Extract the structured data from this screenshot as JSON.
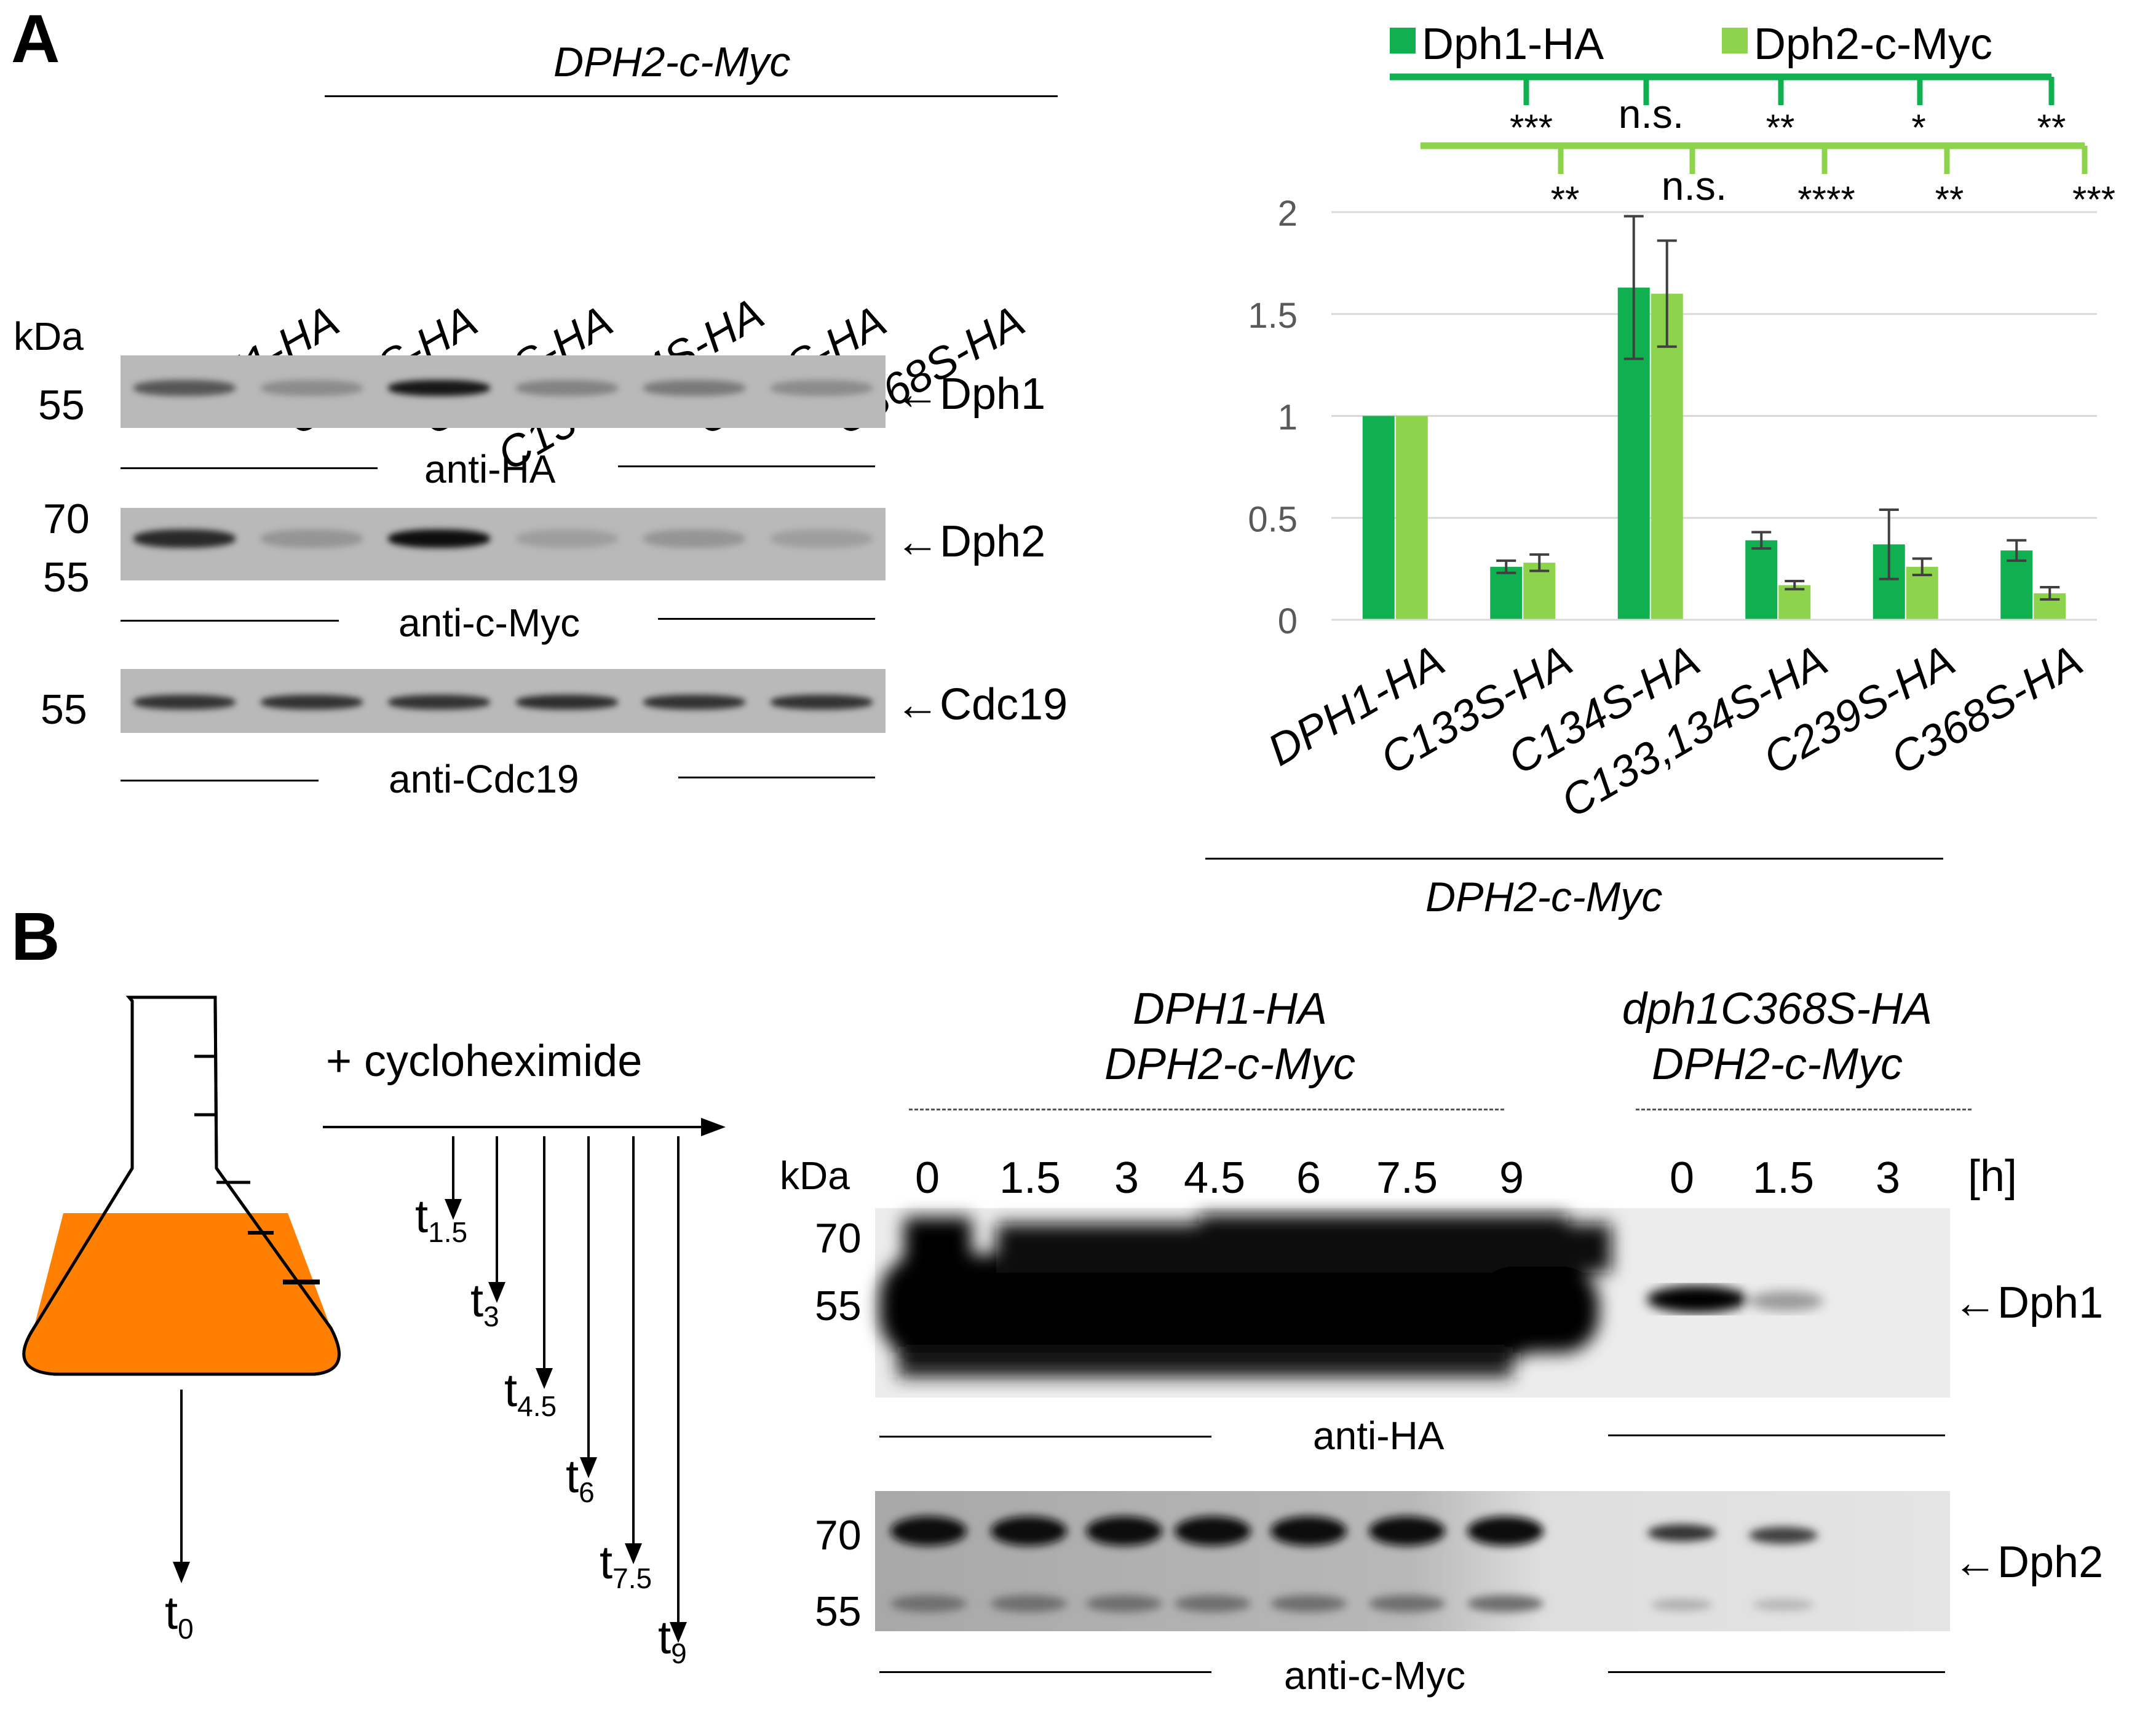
{
  "panelA": {
    "label": "A",
    "header": "DPH2-c-Myc",
    "lanes": [
      "DPH1-HA",
      "C133S-HA",
      "C134S-HA",
      "C133,134S-HA",
      "C239S-HA",
      "C368S-HA"
    ],
    "kda": "kDa",
    "blot1": {
      "mw": [
        "55"
      ],
      "protein": "Dph1",
      "antibody": "anti-HA",
      "intensity": [
        0.55,
        0.25,
        0.9,
        0.3,
        0.35,
        0.25
      ]
    },
    "blot2": {
      "mw": [
        "70",
        "55"
      ],
      "protein": "Dph2",
      "antibody": "anti-c-Myc",
      "intensity": [
        0.8,
        0.2,
        0.95,
        0.15,
        0.2,
        0.15
      ]
    },
    "blot3": {
      "mw": [
        "55"
      ],
      "protein": "Cdc19",
      "antibody": "anti-Cdc19",
      "intensity": [
        0.75,
        0.75,
        0.75,
        0.78,
        0.75,
        0.75
      ]
    },
    "arrow": "←"
  },
  "chart_data": {
    "type": "bar",
    "categories": [
      "DPH1-HA",
      "C133S-HA",
      "C134S-HA",
      "C133,134S-HA",
      "C239S-HA",
      "C368S-HA"
    ],
    "series": [
      {
        "name": "Dph1-HA",
        "color": "#10b050",
        "values": [
          1.0,
          0.26,
          1.63,
          0.39,
          0.37,
          0.34
        ],
        "errors": [
          0,
          0.03,
          0.35,
          0.04,
          0.17,
          0.05
        ]
      },
      {
        "name": "Dph2-c-Myc",
        "color": "#8ed34c",
        "values": [
          1.0,
          0.28,
          1.6,
          0.17,
          0.26,
          0.13
        ],
        "errors": [
          0,
          0.04,
          0.26,
          0.02,
          0.04,
          0.03
        ]
      }
    ],
    "ylim": [
      0,
      2
    ],
    "yticks": [
      "0",
      "0.5",
      "1",
      "1.5",
      "2"
    ],
    "xlabel": "DPH2-c-Myc",
    "significance": {
      "Dph1-HA": [
        "***",
        "n.s.",
        "**",
        "*",
        "**"
      ],
      "Dph2-c-Myc": [
        "**",
        "n.s.",
        "****",
        "**",
        "***"
      ]
    }
  },
  "panelB": {
    "label": "B",
    "treatment": "+ cycloheximide",
    "flask_t0": {
      "base": "t",
      "sub": "0"
    },
    "timepoints": [
      {
        "base": "t",
        "sub": "1.5"
      },
      {
        "base": "t",
        "sub": "3"
      },
      {
        "base": "t",
        "sub": "4.5"
      },
      {
        "base": "t",
        "sub": "6"
      },
      {
        "base": "t",
        "sub": "7.5"
      },
      {
        "base": "t",
        "sub": "9"
      }
    ],
    "strain1": [
      "DPH1-HA",
      "DPH2-c-Myc"
    ],
    "strain2": [
      "dph1C368S-HA",
      "DPH2-c-Myc"
    ],
    "kda": "kDa",
    "times1": [
      "0",
      "1.5",
      "3",
      "4.5",
      "6",
      "7.5",
      "9"
    ],
    "times2": [
      "0",
      "1.5",
      "3"
    ],
    "unit": "[h]",
    "blot1": {
      "mw": [
        "70",
        "55"
      ],
      "protein": "Dph1",
      "antibody": "anti-HA"
    },
    "blot2": {
      "mw": [
        "70",
        "55"
      ],
      "protein": "Dph2",
      "antibody": "anti-c-Myc"
    },
    "colors": {
      "flask_medium": "#ff8000"
    }
  }
}
